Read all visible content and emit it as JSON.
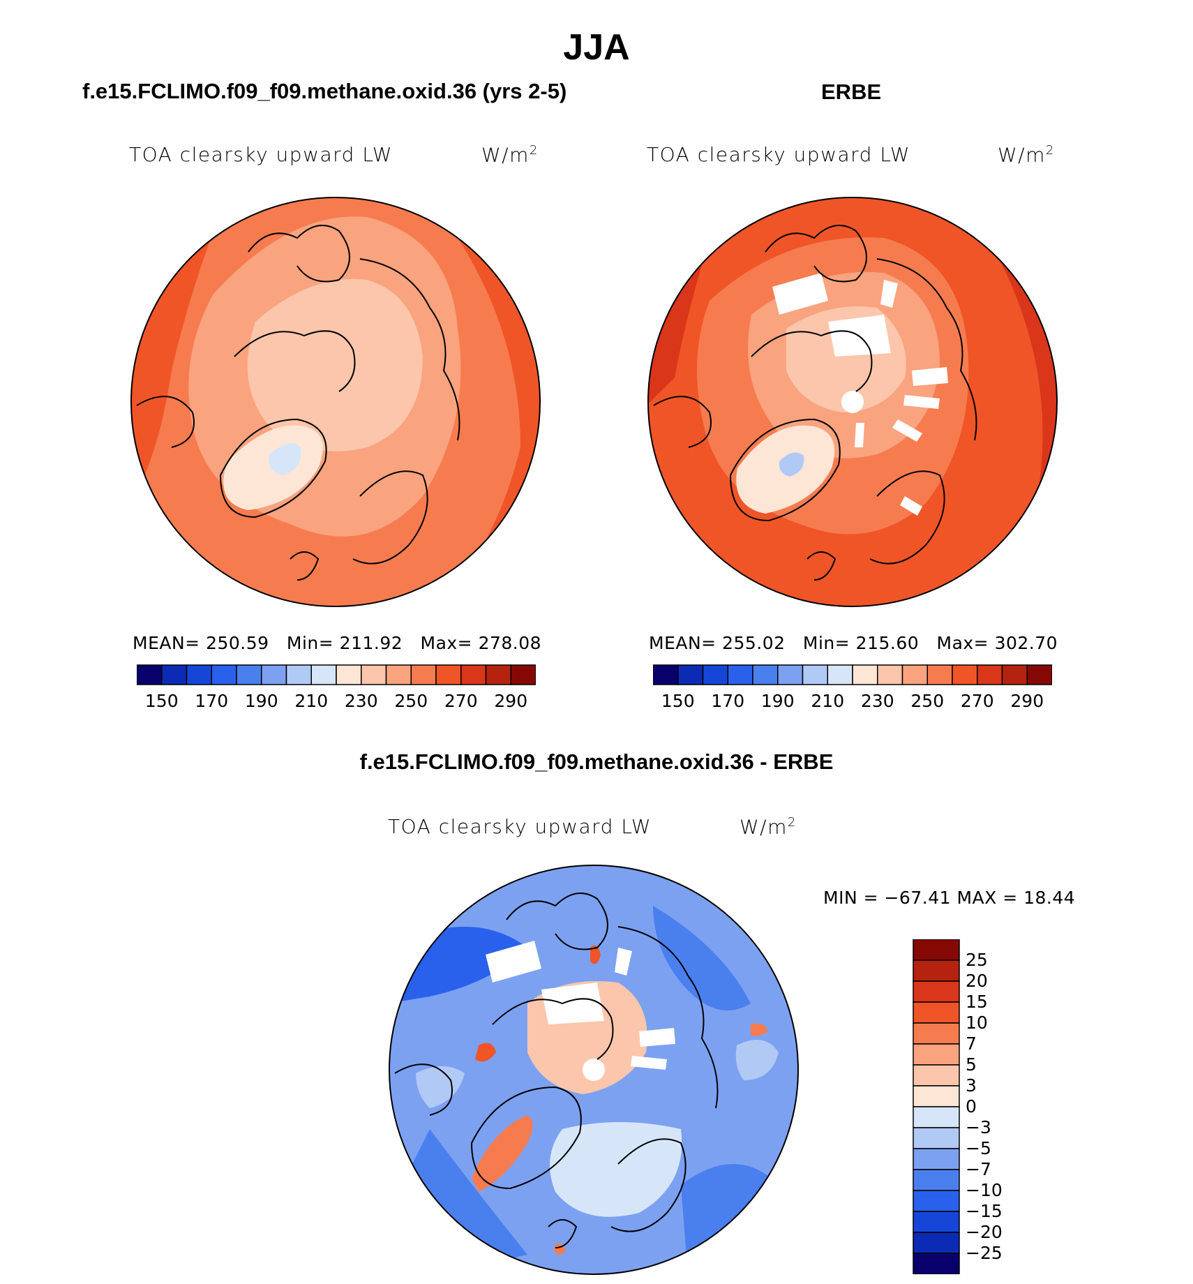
{
  "title": "JJA",
  "colors": {
    "abs_scale": [
      "#08006b",
      "#0c2bb4",
      "#1546d8",
      "#2961ec",
      "#4a7fee",
      "#7da1f1",
      "#b1c9f5",
      "#d6e6f8",
      "#fde6d6",
      "#fbc6ab",
      "#f9a37f",
      "#f67c50",
      "#f05527",
      "#d9361a",
      "#b52310",
      "#850804"
    ],
    "diff_scale": [
      "#08006b",
      "#0c2bb4",
      "#1546d8",
      "#2961ec",
      "#4a7fee",
      "#7da1f1",
      "#b1c9f5",
      "#d6e6f8",
      "#fde6d6",
      "#fbc6ab",
      "#f9a37f",
      "#f67c50",
      "#f05527",
      "#d9361a",
      "#b52310",
      "#850804"
    ]
  },
  "panels": [
    {
      "title": "f.e15.FCLIMO.f09_f09.methane.oxid.36 (yrs 2-5)",
      "variable": "TOA clearsky upward LW",
      "units": "W/m",
      "units_exp": "2",
      "stats": {
        "mean_label": "MEAN=",
        "mean": "250.59",
        "min_label": "Min=",
        "min": "211.92",
        "max_label": "Max=",
        "max": "278.08"
      },
      "colorbar_labels": [
        "150",
        "170",
        "190",
        "210",
        "230",
        "250",
        "270",
        "290"
      ]
    },
    {
      "title": "ERBE",
      "variable": "TOA clearsky upward LW",
      "units": "W/m",
      "units_exp": "2",
      "stats": {
        "mean_label": "MEAN=",
        "mean": "255.02",
        "min_label": "Min=",
        "min": "215.60",
        "max_label": "Max=",
        "max": "302.70"
      },
      "colorbar_labels": [
        "150",
        "170",
        "190",
        "210",
        "230",
        "250",
        "270",
        "290"
      ]
    }
  ],
  "diff_panel": {
    "title": "f.e15.FCLIMO.f09_f09.methane.oxid.36 - ERBE",
    "variable": "TOA clearsky upward LW",
    "units": "W/m",
    "units_exp": "2",
    "minmax": "MIN = −67.41  MAX =   18.44",
    "colorbar_labels": [
      "25",
      "20",
      "15",
      "10",
      "7",
      "5",
      "3",
      "0",
      "−3",
      "−5",
      "−7",
      "−10",
      "−15",
      "−20",
      "−25"
    ]
  }
}
